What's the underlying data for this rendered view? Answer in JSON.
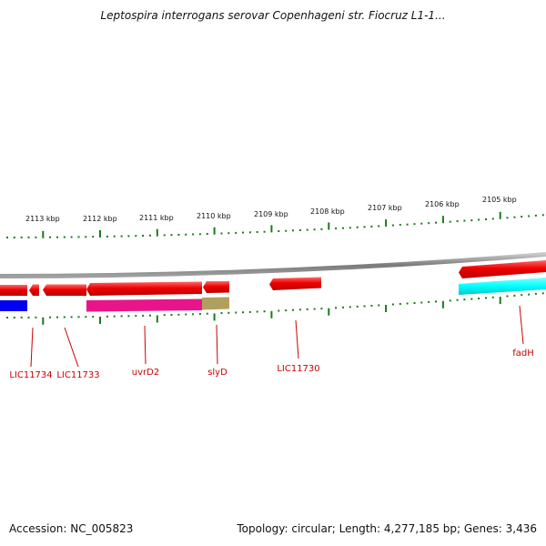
{
  "title": "Leptospira interrogans serovar Copenhageni str. Fiocruz L1-1...",
  "footer": {
    "accession": "Accession: NC_005823",
    "stats": "Topology: circular; Length: 4,277,185 bp; Genes: 3,436"
  },
  "colors": {
    "backbone": "#8a8a8a",
    "tick": "#1a7a1a",
    "gene_forward": "#ee0000",
    "gene_label": "#cc0000",
    "uvrD2_bar": "#e8158a",
    "slyD_bar": "#b0a060",
    "cyan_bar": "#00ffff",
    "blue_bar": "#0000ee"
  },
  "scale_labels": [
    "2113 kbp",
    "2112 kbp",
    "2111 kbp",
    "2110 kbp",
    "2109 kbp",
    "2108 kbp",
    "2107 kbp",
    "2106 kbp",
    "2105 kbp"
  ],
  "gene_labels": [
    "LIC11734",
    "LIC11733",
    "uvrD2",
    "slyD",
    "LIC11730",
    "fadH"
  ]
}
